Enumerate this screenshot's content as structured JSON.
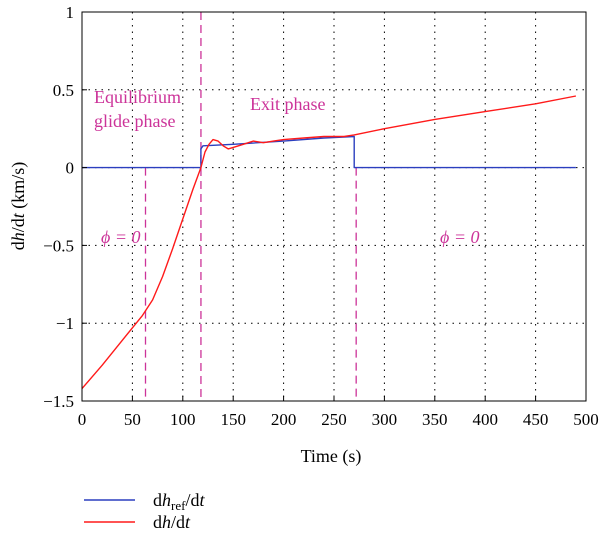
{
  "chart_data": {
    "type": "line",
    "title": "",
    "xlabel": "Time (s)",
    "ylabel": "dh/dt (km/s)",
    "xlim": [
      0,
      500
    ],
    "ylim": [
      -1.5,
      1
    ],
    "xticks": [
      0,
      50,
      100,
      150,
      200,
      250,
      300,
      350,
      400,
      450,
      500
    ],
    "yticks": [
      -1.5,
      -1,
      -0.5,
      0,
      0.5,
      1
    ],
    "grid": true,
    "legend_position": "bottom-left",
    "colors": {
      "ref": "#2b3fbf",
      "actual": "#ff1a1a",
      "annotation": "#cc3399"
    },
    "series": [
      {
        "name": "dh_ref/dt",
        "color": "#2b3fbf",
        "x": [
          0,
          118,
          118,
          120,
          150,
          200,
          240,
          270,
          270,
          490
        ],
        "y": [
          0,
          0,
          0.12,
          0.14,
          0.15,
          0.17,
          0.19,
          0.2,
          0,
          0
        ]
      },
      {
        "name": "dh/dt",
        "color": "#ff1a1a",
        "x": [
          0,
          20,
          40,
          60,
          70,
          80,
          90,
          100,
          110,
          118,
          122,
          126,
          130,
          135,
          140,
          145,
          150,
          160,
          170,
          180,
          190,
          200,
          220,
          240,
          260,
          270,
          300,
          350,
          400,
          450,
          490
        ],
        "y": [
          -1.42,
          -1.27,
          -1.11,
          -0.95,
          -0.85,
          -0.7,
          -0.52,
          -0.33,
          -0.14,
          0,
          0.1,
          0.15,
          0.18,
          0.17,
          0.14,
          0.12,
          0.13,
          0.15,
          0.17,
          0.16,
          0.17,
          0.18,
          0.19,
          0.2,
          0.2,
          0.21,
          0.25,
          0.31,
          0.36,
          0.41,
          0.46
        ]
      }
    ],
    "phase_boundaries": [
      63,
      118,
      272
    ],
    "annotations": {
      "equilibrium_line1": "Equilibrium",
      "equilibrium_line2": "glide phase",
      "exit_phase": "Exit phase",
      "phi_left": "ϕ = 0",
      "phi_right": "ϕ = 0"
    },
    "legend": [
      {
        "label": "dh_ref/dt",
        "color": "#2b3fbf"
      },
      {
        "label": "dh/dt",
        "color": "#ff1a1a"
      }
    ]
  }
}
